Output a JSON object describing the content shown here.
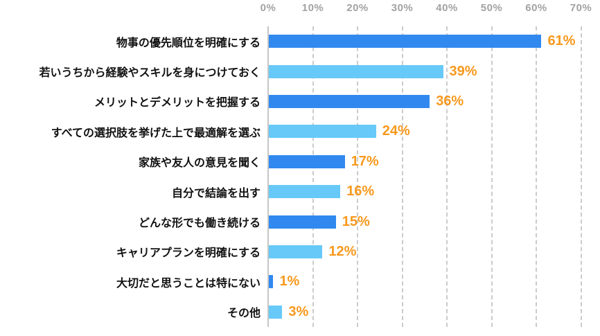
{
  "chart_data": {
    "type": "bar",
    "orientation": "horizontal",
    "title": "",
    "xlabel": "",
    "ylabel": "",
    "categories": [
      "物事の優先順位を明確にする",
      "若いうちから経験やスキルを身につけておく",
      "メリットとデメリットを把握する",
      "すべての選択肢を挙げた上で最適解を選ぶ",
      "家族や友人の意見を聞く",
      "自分で結論を出す",
      "どんな形でも働き続ける",
      "キャリアプランを明確にする",
      "大切だと思うことは特にない",
      "その他"
    ],
    "values": [
      61,
      39,
      36,
      24,
      17,
      16,
      15,
      12,
      1,
      3
    ],
    "value_labels": [
      "61%",
      "39%",
      "36%",
      "24%",
      "17%",
      "16%",
      "15%",
      "12%",
      "1%",
      "3%"
    ],
    "x_ticks": [
      "0%",
      "10%",
      "20%",
      "30%",
      "40%",
      "50%",
      "60%",
      "70%"
    ],
    "xlim": [
      0,
      70
    ],
    "grid": "vertical-dashed",
    "legend": "none",
    "colors": {
      "bar_pattern": [
        "#3189EF",
        "#67C9F8",
        "#3189EF",
        "#67C9F8",
        "#3189EF",
        "#67C9F8",
        "#3189EF",
        "#67C9F8",
        "#3189EF",
        "#67C9F8"
      ],
      "bar_primary": "#3189EF",
      "bar_secondary": "#67C9F8",
      "value_label": "#F8991D",
      "axis_text": "#A2A2A2",
      "gridline": "#CBCBCB",
      "axis_line": "#C6C6C6",
      "category_text": "#111111"
    }
  }
}
